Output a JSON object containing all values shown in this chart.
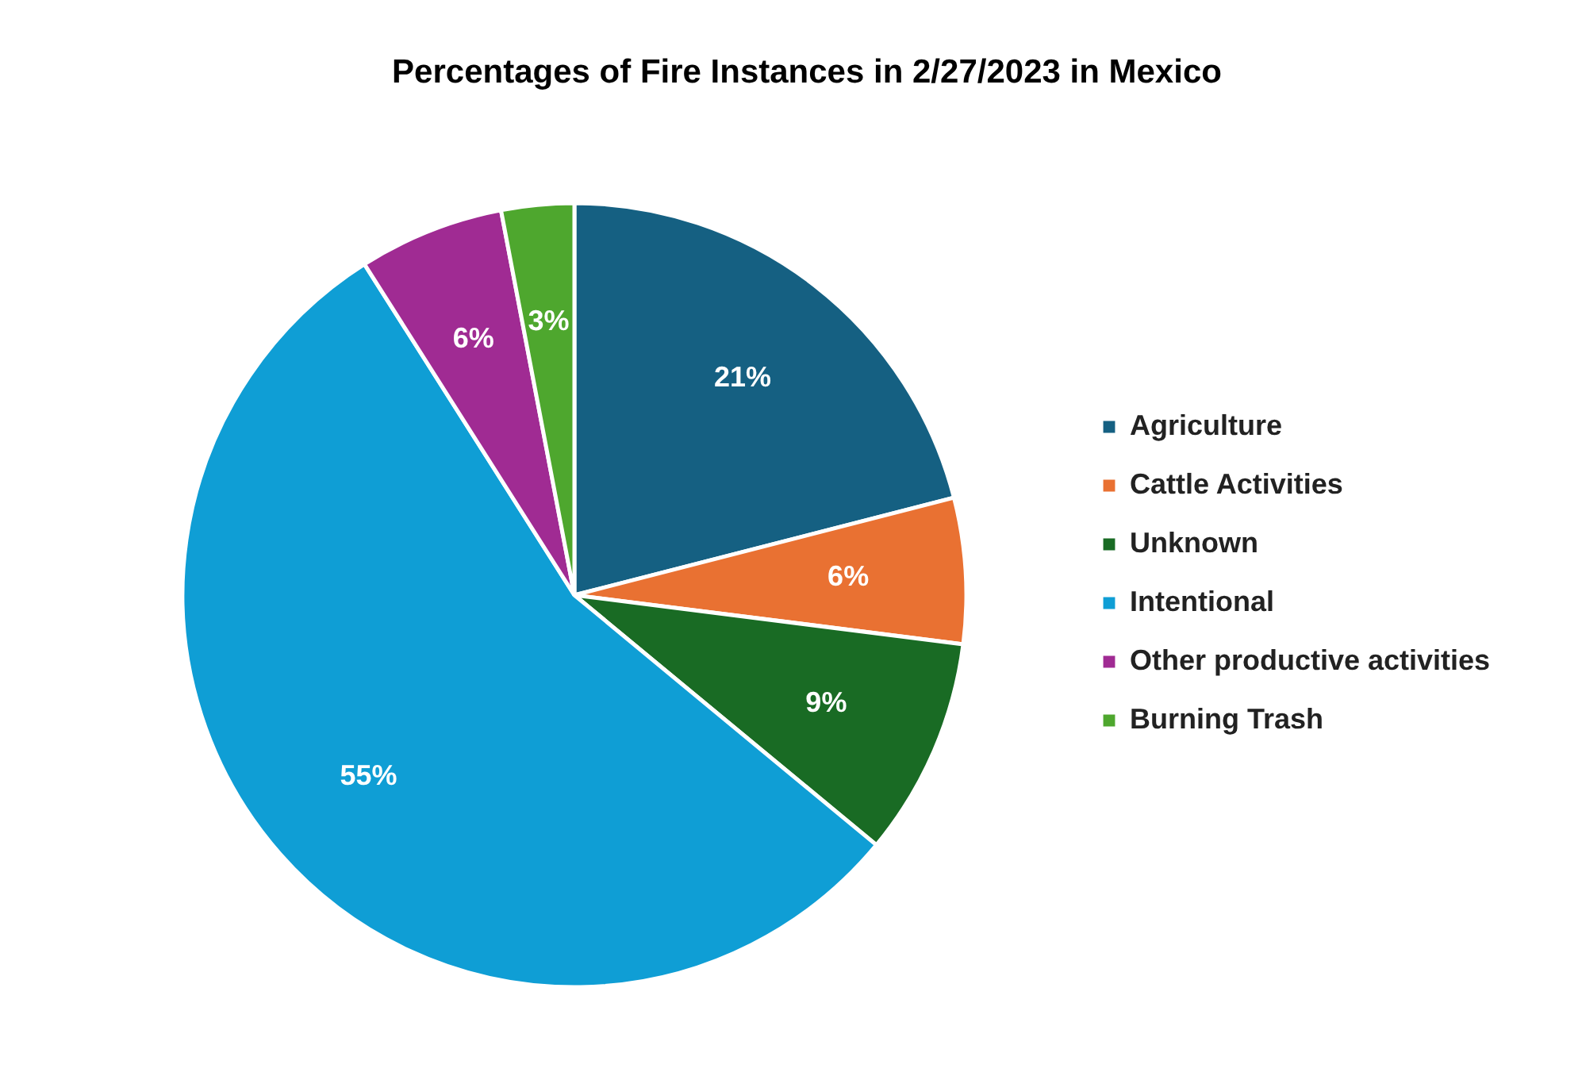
{
  "chart_data": {
    "type": "pie",
    "title": "Percentages of Fire Instances in 2/27/2023 in Mexico",
    "categories": [
      "Agriculture",
      "Cattle Activities",
      "Unknown",
      "Intentional",
      "Other productive activities",
      "Burning Trash"
    ],
    "values": [
      21,
      6,
      9,
      55,
      6,
      3
    ],
    "colors": [
      "#156082",
      "#e97132",
      "#196b24",
      "#0f9ed5",
      "#a02b93",
      "#4ea72e"
    ],
    "value_labels": [
      "21%",
      "6%",
      "9%",
      "55%",
      "6%",
      "3%"
    ],
    "legend": "right"
  }
}
